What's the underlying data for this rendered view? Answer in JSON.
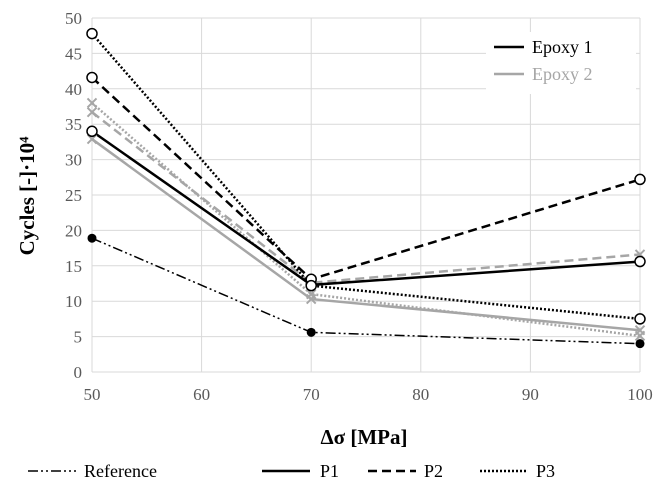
{
  "chart_data": {
    "type": "line",
    "xlabel": "Δσ [MPa]",
    "ylabel": "Cycles [-]·10⁴",
    "x": [
      50,
      70,
      100
    ],
    "xlim": [
      50,
      100
    ],
    "xticks": [
      50,
      60,
      70,
      80,
      90,
      100
    ],
    "ylim": [
      0,
      50
    ],
    "yticks": [
      0,
      5,
      10,
      15,
      20,
      25,
      30,
      35,
      40,
      45,
      50
    ],
    "grid": "vertical and horizontal, light gray",
    "series": [
      {
        "name": "Reference",
        "dash": "dash-dot-dot",
        "color": "#000000",
        "marker": "filled-circle",
        "values": [
          18.9,
          5.6,
          4.0
        ]
      },
      {
        "name": "P1 Epoxy 1",
        "dash": "solid",
        "color": "#000000",
        "marker": "open-circle",
        "values": [
          34.0,
          12.3,
          15.6
        ]
      },
      {
        "name": "P2 Epoxy 1",
        "dash": "dashed",
        "color": "#000000",
        "marker": "open-circle",
        "values": [
          41.6,
          13.1,
          27.2
        ]
      },
      {
        "name": "P3 Epoxy 1",
        "dash": "dotted",
        "color": "#000000",
        "marker": "open-circle",
        "values": [
          47.8,
          12.2,
          7.5
        ]
      },
      {
        "name": "P1 Epoxy 2",
        "dash": "solid",
        "color": "#a6a6a6",
        "marker": "cross",
        "values": [
          32.9,
          10.3,
          5.9
        ]
      },
      {
        "name": "P2 Epoxy 2",
        "dash": "dashed",
        "color": "#a6a6a6",
        "marker": "cross",
        "values": [
          36.7,
          12.6,
          16.6
        ]
      },
      {
        "name": "P3 Epoxy 2",
        "dash": "dotted",
        "color": "#a6a6a6",
        "marker": "cross",
        "values": [
          38.0,
          11.0,
          5.1
        ]
      }
    ],
    "legend_inset": {
      "placement": "top-right",
      "entries": [
        {
          "label": "Epoxy 1",
          "color": "#000000"
        },
        {
          "label": "Epoxy 2",
          "color": "#a6a6a6"
        }
      ]
    },
    "legend_bottom": {
      "placement": "bottom",
      "entries": [
        {
          "label": "Reference",
          "dash": "dash-dot-dot"
        },
        {
          "label": "P1",
          "dash": "solid"
        },
        {
          "label": "P2",
          "dash": "dashed"
        },
        {
          "label": "P3",
          "dash": "dotted"
        }
      ]
    }
  }
}
